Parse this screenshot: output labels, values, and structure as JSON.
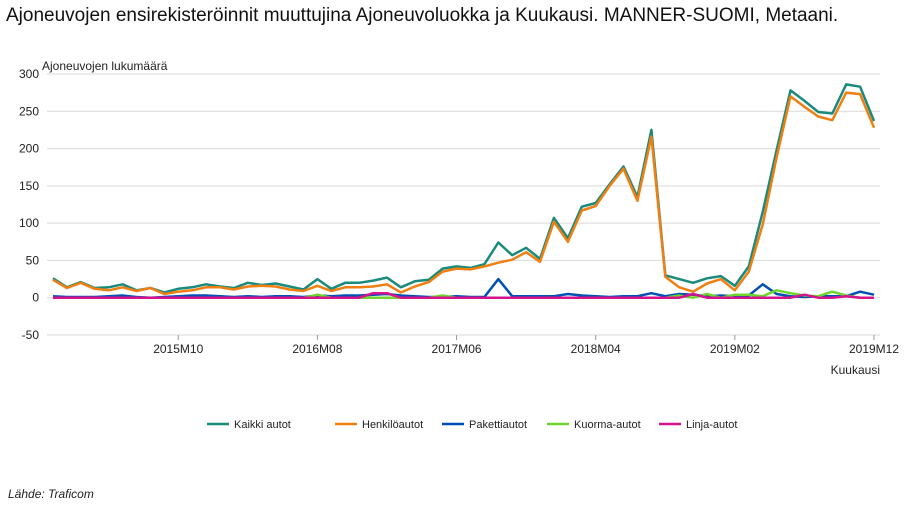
{
  "title": "Ajoneuvojen ensirekisteröinnit muuttujina Ajoneuvoluokka ja Kuukausi. MANNER-SUOMI, Metaani.",
  "source": "Lähde: Traficom",
  "chart_data": {
    "type": "line",
    "title": "Ajoneuvojen ensirekisteröinnit muuttujina Ajoneuvoluokka ja Kuukausi. MANNER-SUOMI, Metaani.",
    "ylabel": "Ajoneuvojen lukumäärä",
    "xlabel": "Kuukausi",
    "ylim": [
      -50,
      300
    ],
    "yticks": [
      -50,
      0,
      50,
      100,
      150,
      200,
      250,
      300
    ],
    "x_tick_labels": [
      "2015M10",
      "2016M08",
      "2017M06",
      "2018M04",
      "2019M02",
      "2019M12"
    ],
    "x": [
      "2015M01",
      "2015M02",
      "2015M03",
      "2015M04",
      "2015M05",
      "2015M06",
      "2015M07",
      "2015M08",
      "2015M09",
      "2015M10",
      "2015M11",
      "2015M12",
      "2016M01",
      "2016M02",
      "2016M03",
      "2016M04",
      "2016M05",
      "2016M06",
      "2016M07",
      "2016M08",
      "2016M09",
      "2016M10",
      "2016M11",
      "2016M12",
      "2017M01",
      "2017M02",
      "2017M03",
      "2017M04",
      "2017M05",
      "2017M06",
      "2017M07",
      "2017M08",
      "2017M09",
      "2017M10",
      "2017M11",
      "2017M12",
      "2018M01",
      "2018M02",
      "2018M03",
      "2018M04",
      "2018M05",
      "2018M06",
      "2018M07",
      "2018M08",
      "2018M09",
      "2018M10",
      "2018M11",
      "2018M12",
      "2019M01",
      "2019M02",
      "2019M03",
      "2019M04",
      "2019M05",
      "2019M06",
      "2019M07",
      "2019M08",
      "2019M09",
      "2019M10",
      "2019M11",
      "2019M12"
    ],
    "legend_position": "bottom",
    "grid": true,
    "series": [
      {
        "name": "Kaikki autot",
        "color": "#1a8a7a",
        "values": [
          26,
          14,
          21,
          13,
          14,
          18,
          10,
          13,
          7,
          12,
          14,
          18,
          15,
          13,
          20,
          17,
          19,
          15,
          11,
          25,
          12,
          20,
          20,
          23,
          27,
          14,
          22,
          24,
          39,
          42,
          40,
          45,
          74,
          57,
          67,
          52,
          107,
          80,
          122,
          127,
          152,
          176,
          135,
          225,
          30,
          25,
          20,
          26,
          29,
          16,
          42,
          115,
          198,
          278,
          264,
          249,
          247,
          286,
          283,
          237
        ]
      },
      {
        "name": "Henkilöautot",
        "color": "#f07f12",
        "values": [
          24,
          13,
          20,
          12,
          10,
          14,
          9,
          13,
          5,
          8,
          10,
          14,
          14,
          11,
          15,
          16,
          15,
          11,
          9,
          16,
          9,
          14,
          14,
          15,
          18,
          7,
          15,
          21,
          35,
          39,
          38,
          42,
          47,
          51,
          61,
          48,
          102,
          75,
          117,
          123,
          150,
          173,
          130,
          216,
          28,
          14,
          8,
          19,
          25,
          10,
          35,
          98,
          188,
          270,
          256,
          243,
          238,
          275,
          273,
          228
        ]
      },
      {
        "name": "Pakettiautot",
        "color": "#0050b4",
        "values": [
          2,
          1,
          1,
          1,
          2,
          3,
          1,
          0,
          1,
          2,
          3,
          3,
          2,
          1,
          2,
          1,
          2,
          2,
          1,
          3,
          2,
          3,
          3,
          4,
          5,
          3,
          2,
          1,
          1,
          2,
          1,
          1,
          25,
          2,
          2,
          2,
          2,
          5,
          3,
          2,
          1,
          2,
          2,
          6,
          2,
          5,
          4,
          2,
          3,
          2,
          3,
          18,
          5,
          2,
          1,
          2,
          2,
          2,
          8,
          4
        ]
      },
      {
        "name": "Kuorma-autot",
        "color": "#6ed42e",
        "values": [
          0,
          0,
          0,
          0,
          0,
          0,
          0,
          0,
          0,
          0,
          0,
          0,
          0,
          0,
          0,
          0,
          0,
          0,
          0,
          4,
          0,
          0,
          0,
          0,
          0,
          0,
          0,
          0,
          3,
          0,
          0,
          0,
          0,
          0,
          0,
          0,
          0,
          0,
          0,
          0,
          0,
          0,
          0,
          0,
          0,
          3,
          0,
          5,
          0,
          4,
          4,
          2,
          10,
          6,
          3,
          2,
          8,
          3,
          0,
          0
        ]
      },
      {
        "name": "Linja-autot",
        "color": "#d4138c",
        "values": [
          0,
          0,
          0,
          0,
          0,
          0,
          0,
          0,
          0,
          0,
          0,
          0,
          0,
          0,
          0,
          0,
          0,
          0,
          0,
          0,
          0,
          0,
          0,
          6,
          6,
          0,
          0,
          0,
          0,
          0,
          0,
          0,
          0,
          0,
          0,
          0,
          0,
          0,
          0,
          0,
          0,
          0,
          0,
          0,
          0,
          0,
          5,
          0,
          0,
          0,
          0,
          0,
          0,
          0,
          4,
          0,
          0,
          2,
          0,
          0
        ]
      }
    ]
  }
}
